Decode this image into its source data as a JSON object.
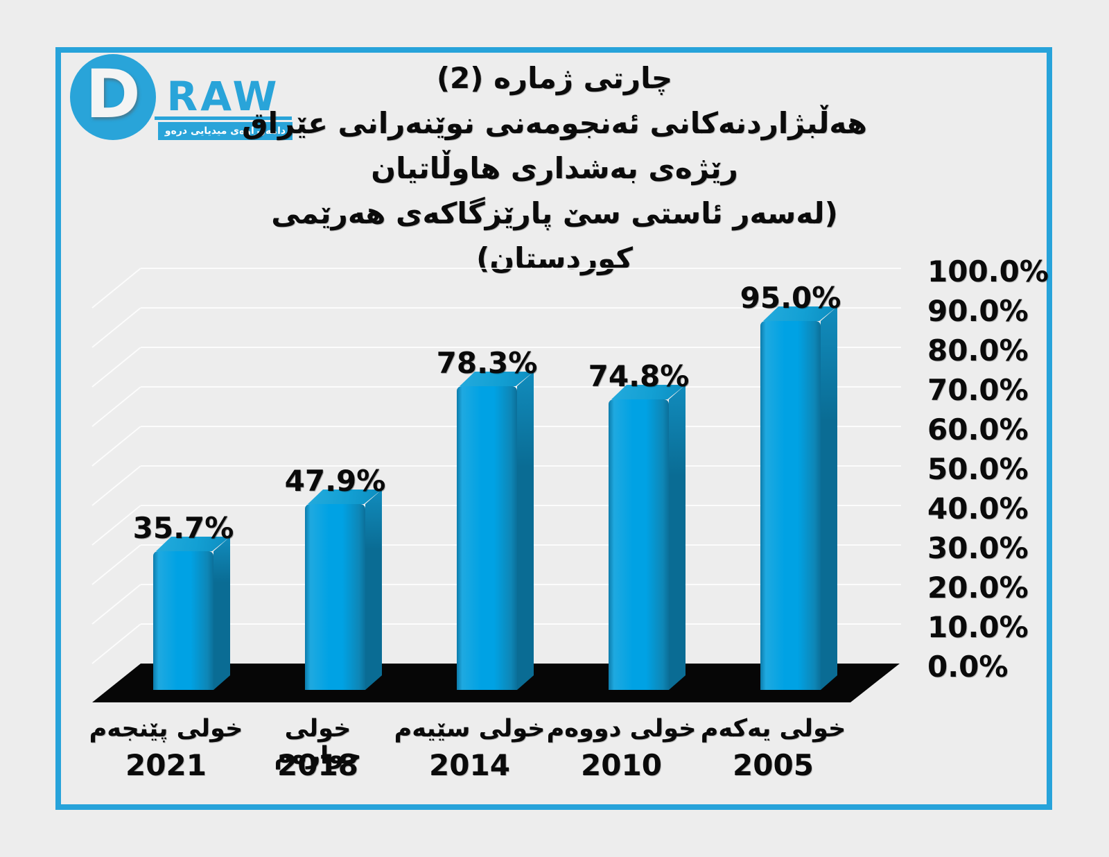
{
  "logo": {
    "circle_letter": "D",
    "brand": "RAW",
    "tagline": "دامەزراوەی میدیایی درەو"
  },
  "title": {
    "line1": "چارتی ژماره (2)",
    "line2": "هەڵبژاردنەکانی ئەنجومەنی نوێنەرانی عێراق",
    "line3": "رێژەی بەشداری هاوڵاتیان",
    "line4": "(لەسەر ئاستی سێ پارێزگاکەی هەرێمی کوردستان)"
  },
  "chart_data": {
    "type": "bar",
    "title": "چارتی ژماره (2) هەڵبژاردنەکانی ئەنجومەنی نوێنەرانی عێراق — رێژەی بەشداری هاوڵاتیان (لەسەر ئاستی سێ پارێزگاکەی هەرێمی کوردستان)",
    "categories": [
      "خولی پێنجەم",
      "خولی چوارەم",
      "خولی سێیەم",
      "خولی دووەم",
      "خولی یەکەم"
    ],
    "category_years": [
      "2021",
      "2018",
      "2014",
      "2010",
      "2005"
    ],
    "values": [
      35.7,
      47.9,
      78.3,
      74.8,
      95.0
    ],
    "value_labels": [
      "35.7%",
      "47.9%",
      "78.3%",
      "74.8%",
      "95.0%"
    ],
    "y_ticks": [
      "100.0%",
      "90.0%",
      "80.0%",
      "70.0%",
      "60.0%",
      "50.0%",
      "40.0%",
      "30.0%",
      "20.0%",
      "10.0%",
      "0.0%"
    ],
    "ylim": [
      0,
      100
    ],
    "y_tick_step": 10,
    "legend_position": "none",
    "grid": "faint-horizontal-3d",
    "style": "3d-column",
    "bar_color": "#00a2e4",
    "bar_side_color": "#0a6c94",
    "bar_top_color": "#13a0d4",
    "floor_color": "#060606",
    "frame_color": "#27a3da",
    "background_color": "#ededed",
    "text_color": "#0a0a0a"
  }
}
